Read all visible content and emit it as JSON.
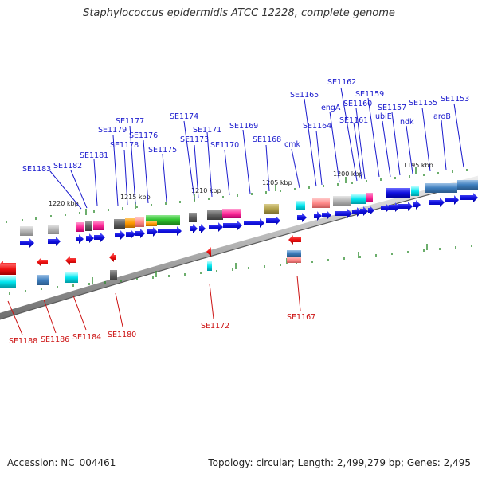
{
  "title": "Staphylococcus epidermidis ATCC 12228, complete genome",
  "footer": {
    "accession": "Accession: NC_004461",
    "topology": "Topology: circular; Length: 2,499,279 bp; Genes: 2,495"
  },
  "colors": {
    "label_top": "#1a1acd",
    "label_bottom": "#cc1111",
    "backbone": "#8a8a8a",
    "tick": "#2e8b2e",
    "arrow_plus": "#1010e0",
    "arrow_minus": "#ee1111"
  },
  "scale_labels": [
    "1220 kbp",
    "1215 kbp",
    "1210 kbp",
    "1205 kbp",
    "1200 kbp",
    "1195 kbp"
  ],
  "top_genes": [
    "SE1183",
    "SE1182",
    "SE1181",
    "SE1179",
    "SE1178",
    "SE1177",
    "SE1176",
    "SE1175",
    "SE1174",
    "SE1173",
    "SE1171",
    "SE1170",
    "SE1169",
    "SE1168",
    "cmk",
    "SE1165",
    "SE1164",
    "engA",
    "SE1162",
    "SE1160",
    "SE1161",
    "SE1159",
    "ubiE",
    "SE1157",
    "ndk",
    "SE1155",
    "aroB",
    "SE1153"
  ],
  "bottom_genes": [
    "SE1188",
    "SE1186",
    "SE1184",
    "SE1180",
    "SE1172",
    "SE1167"
  ]
}
